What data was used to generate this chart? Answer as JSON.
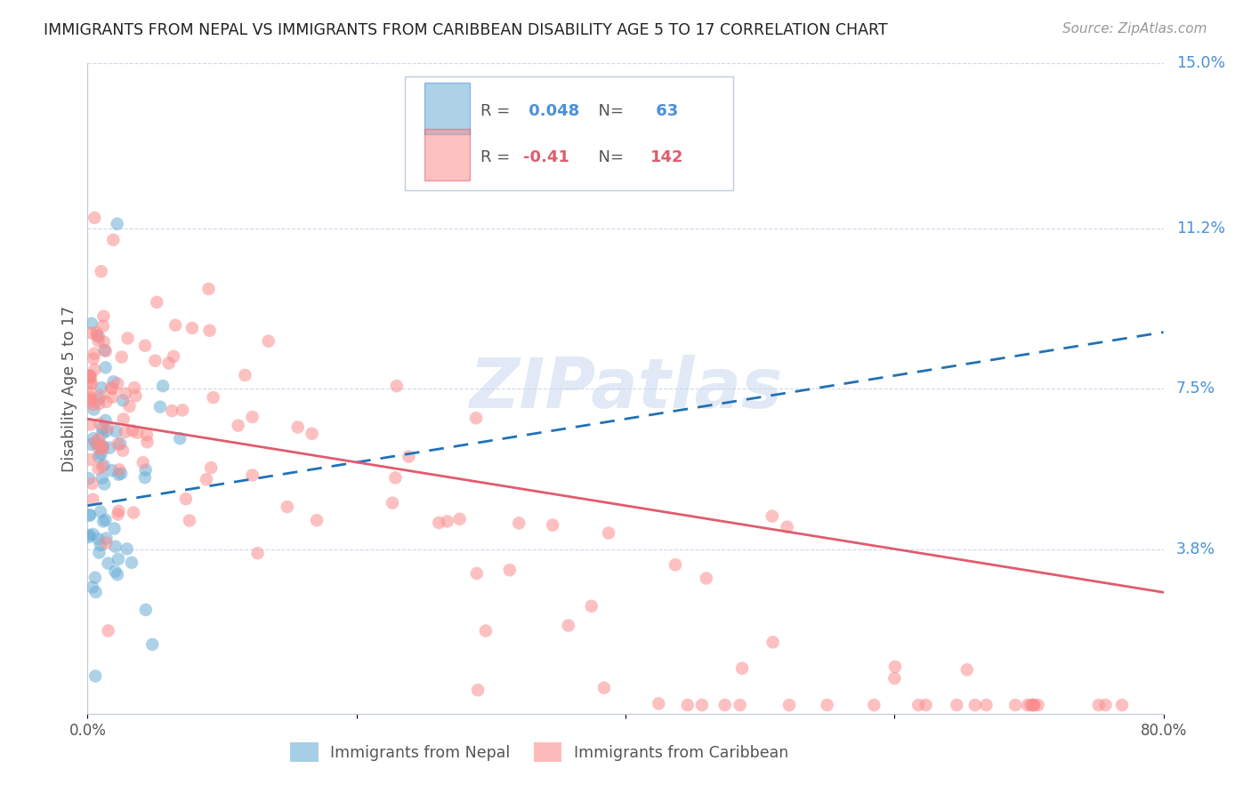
{
  "title": "IMMIGRANTS FROM NEPAL VS IMMIGRANTS FROM CARIBBEAN DISABILITY AGE 5 TO 17 CORRELATION CHART",
  "source": "Source: ZipAtlas.com",
  "ylabel": "Disability Age 5 to 17",
  "xlim": [
    0.0,
    0.8
  ],
  "ylim": [
    0.0,
    0.15
  ],
  "y_tick_positions_right": [
    0.15,
    0.112,
    0.075,
    0.038
  ],
  "y_tick_labels_right": [
    "15.0%",
    "11.2%",
    "7.5%",
    "3.8%"
  ],
  "nepal_R": 0.048,
  "nepal_N": 63,
  "caribbean_R": -0.41,
  "caribbean_N": 142,
  "nepal_color": "#6baed6",
  "caribbean_color": "#fc8d8d",
  "nepal_line_color": "#2171b5",
  "caribbean_line_color": "#e05c6e",
  "watermark_color": "#c8d8ee",
  "grid_color": "#d0d8e8",
  "background_color": "#ffffff",
  "nepal_line_start_x": 0.0,
  "nepal_line_start_y": 0.048,
  "nepal_line_end_x": 0.8,
  "nepal_line_end_y": 0.088,
  "caribbean_line_start_x": 0.0,
  "caribbean_line_start_y": 0.068,
  "caribbean_line_end_x": 0.8,
  "caribbean_line_end_y": 0.028
}
